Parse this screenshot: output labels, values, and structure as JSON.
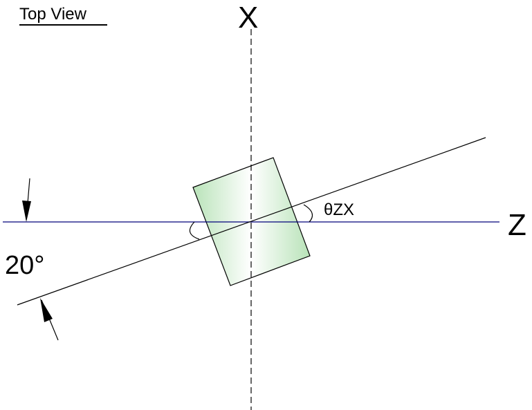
{
  "diagram": {
    "title": "Top View",
    "axis_x_label": "X",
    "axis_z_label": "Z",
    "rotation_angle_label": "20°",
    "theta_label": "θZX",
    "theta_color": "#e00000",
    "box_fill_color": "#cdeccd",
    "line_color": "#000000",
    "z_axis_color": "#00007a"
  }
}
